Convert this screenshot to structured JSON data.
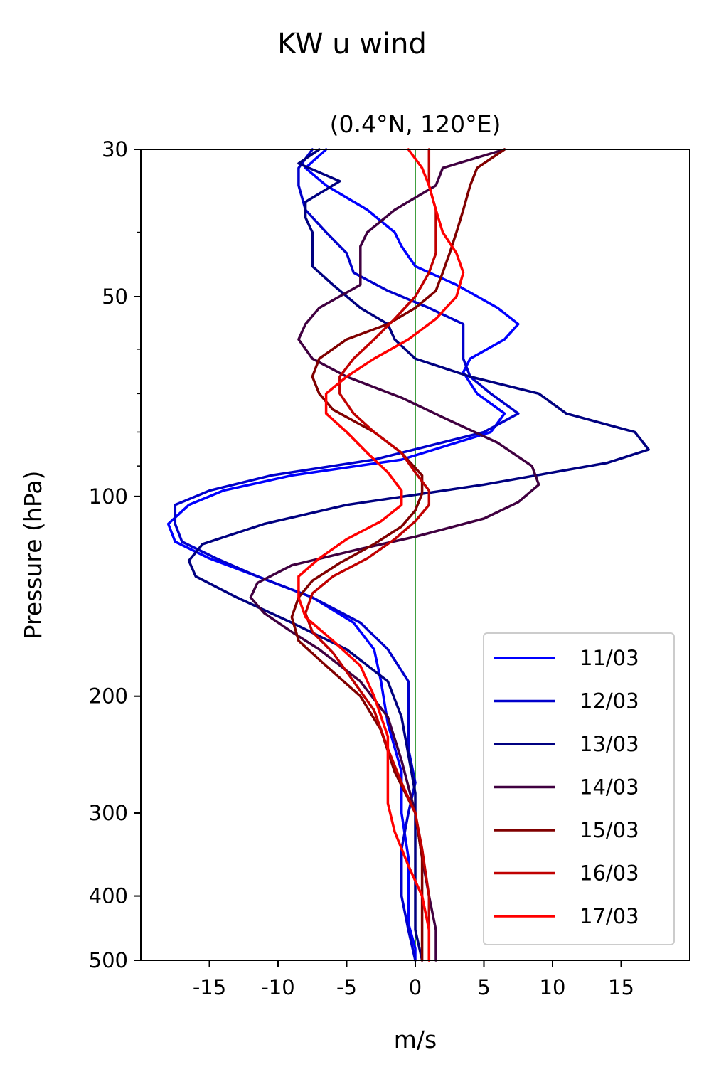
{
  "chart_data": {
    "type": "line",
    "suptitle": "KW u wind",
    "title": "(0.4°N, 120°E)",
    "xlabel": "m/s",
    "ylabel": "Pressure (hPa)",
    "xlim": [
      -20,
      20
    ],
    "ylim": [
      500,
      30
    ],
    "yscale": "log",
    "xticks": [
      -15,
      -10,
      -5,
      0,
      5,
      10,
      15
    ],
    "xtick_labels": [
      "-15",
      "-10",
      "-5",
      "0",
      "5",
      "10",
      "15"
    ],
    "yticks": [
      30,
      50,
      100,
      200,
      300,
      400,
      500
    ],
    "ytick_labels": [
      "30",
      "50",
      "100",
      "200",
      "300",
      "400",
      "500"
    ],
    "reference_line": {
      "x": 0,
      "color": "#008000"
    },
    "legend_position": "lower right",
    "series": [
      {
        "name": "11/03",
        "color": "#0000ff",
        "points": [
          [
            -6.5,
            30
          ],
          [
            -8,
            32
          ],
          [
            -6.5,
            34
          ],
          [
            -3.5,
            37
          ],
          [
            -1.5,
            40
          ],
          [
            -1,
            42
          ],
          [
            0,
            45
          ],
          [
            3,
            48
          ],
          [
            6,
            52
          ],
          [
            7.5,
            55
          ],
          [
            6.5,
            58
          ],
          [
            4,
            62
          ],
          [
            3.5,
            65
          ],
          [
            4.5,
            70
          ],
          [
            6.5,
            75
          ],
          [
            5.5,
            80
          ],
          [
            -1,
            88
          ],
          [
            -9,
            93
          ],
          [
            -14,
            98
          ],
          [
            -16.5,
            103
          ],
          [
            -18,
            110
          ],
          [
            -17.5,
            117
          ],
          [
            -15,
            124
          ],
          [
            -11.5,
            132
          ],
          [
            -7.5,
            142
          ],
          [
            -4.5,
            155
          ],
          [
            -3,
            170
          ],
          [
            -2.5,
            190
          ],
          [
            -2,
            220
          ],
          [
            -1,
            260
          ],
          [
            -1,
            300
          ],
          [
            -0.5,
            350
          ],
          [
            -0.5,
            400
          ],
          [
            -0.5,
            440
          ],
          [
            0,
            480
          ],
          [
            0,
            500
          ]
        ]
      },
      {
        "name": "12/03",
        "color": "#0000cc",
        "points": [
          [
            -7.5,
            30
          ],
          [
            -8.5,
            32
          ],
          [
            -8.5,
            34
          ],
          [
            -8,
            37
          ],
          [
            -6.5,
            40
          ],
          [
            -5,
            43
          ],
          [
            -4.5,
            46
          ],
          [
            -2,
            49
          ],
          [
            1,
            52
          ],
          [
            3.5,
            55
          ],
          [
            3.5,
            58
          ],
          [
            3.5,
            62
          ],
          [
            4,
            66
          ],
          [
            5.5,
            70
          ],
          [
            7.5,
            75
          ],
          [
            5,
            80
          ],
          [
            -3,
            88
          ],
          [
            -10.5,
            93
          ],
          [
            -15,
            98
          ],
          [
            -17.5,
            103
          ],
          [
            -17.5,
            110
          ],
          [
            -17,
            117
          ],
          [
            -14.5,
            124
          ],
          [
            -11.5,
            132
          ],
          [
            -7.5,
            142
          ],
          [
            -4,
            155
          ],
          [
            -2,
            170
          ],
          [
            -0.5,
            190
          ],
          [
            -0.5,
            215
          ],
          [
            -0.5,
            240
          ],
          [
            0,
            270
          ],
          [
            -0.5,
            300
          ],
          [
            -1,
            340
          ],
          [
            -1,
            400
          ],
          [
            -0.5,
            450
          ],
          [
            0,
            500
          ]
        ]
      },
      {
        "name": "13/03",
        "color": "#000080",
        "points": [
          [
            -7,
            30
          ],
          [
            -8.5,
            31.5
          ],
          [
            -5.5,
            33.5
          ],
          [
            -8,
            36
          ],
          [
            -8,
            38
          ],
          [
            -7.5,
            40
          ],
          [
            -7.5,
            43
          ],
          [
            -7.5,
            45
          ],
          [
            -6,
            48
          ],
          [
            -4,
            52
          ],
          [
            -2,
            55
          ],
          [
            -1.5,
            58
          ],
          [
            0,
            62
          ],
          [
            4,
            66
          ],
          [
            9,
            70
          ],
          [
            11,
            75
          ],
          [
            16,
            80
          ],
          [
            17,
            85
          ],
          [
            14,
            89
          ],
          [
            5,
            96
          ],
          [
            -5,
            103
          ],
          [
            -11,
            110
          ],
          [
            -15.5,
            118
          ],
          [
            -16.5,
            125
          ],
          [
            -16,
            132
          ],
          [
            -13,
            142
          ],
          [
            -9,
            155
          ],
          [
            -5,
            170
          ],
          [
            -2,
            190
          ],
          [
            -1,
            215
          ],
          [
            -0.5,
            245
          ],
          [
            0,
            280
          ],
          [
            0,
            320
          ],
          [
            0,
            380
          ],
          [
            0,
            450
          ],
          [
            0.5,
            500
          ]
        ]
      },
      {
        "name": "14/03",
        "color": "#400040",
        "points": [
          [
            6.5,
            30
          ],
          [
            2,
            32
          ],
          [
            1.5,
            34
          ],
          [
            -1.5,
            37
          ],
          [
            -3.5,
            40
          ],
          [
            -4,
            42
          ],
          [
            -4,
            45
          ],
          [
            -4,
            48
          ],
          [
            -7,
            52
          ],
          [
            -8,
            55
          ],
          [
            -8.5,
            58
          ],
          [
            -7.5,
            62
          ],
          [
            -5,
            66
          ],
          [
            -1,
            71
          ],
          [
            2,
            76
          ],
          [
            6,
            83
          ],
          [
            8.5,
            90
          ],
          [
            9,
            96
          ],
          [
            7.5,
            102
          ],
          [
            5,
            108
          ],
          [
            0,
            115
          ],
          [
            -4,
            120
          ],
          [
            -9,
            127
          ],
          [
            -11.5,
            135
          ],
          [
            -12,
            142
          ],
          [
            -11,
            150
          ],
          [
            -9,
            160
          ],
          [
            -7,
            170
          ],
          [
            -4,
            190
          ],
          [
            -2,
            215
          ],
          [
            -1,
            250
          ],
          [
            0,
            300
          ],
          [
            0.5,
            350
          ],
          [
            1,
            400
          ],
          [
            1.5,
            450
          ],
          [
            1.5,
            500
          ]
        ]
      },
      {
        "name": "15/03",
        "color": "#800000",
        "points": [
          [
            6.5,
            30
          ],
          [
            4.5,
            32
          ],
          [
            4,
            34
          ],
          [
            3.5,
            37
          ],
          [
            3,
            40
          ],
          [
            2.5,
            43
          ],
          [
            2,
            46
          ],
          [
            1.5,
            49
          ],
          [
            0,
            52
          ],
          [
            -2,
            55
          ],
          [
            -5,
            58
          ],
          [
            -7,
            62
          ],
          [
            -7.5,
            66
          ],
          [
            -7,
            70
          ],
          [
            -6,
            74
          ],
          [
            -3,
            80
          ],
          [
            -1,
            86
          ],
          [
            0.5,
            93
          ],
          [
            0.5,
            99
          ],
          [
            0,
            105
          ],
          [
            -1,
            111
          ],
          [
            -3,
            118
          ],
          [
            -5.5,
            126
          ],
          [
            -7.5,
            134
          ],
          [
            -8.5,
            142
          ],
          [
            -9,
            152
          ],
          [
            -8.5,
            165
          ],
          [
            -6.5,
            180
          ],
          [
            -4,
            200
          ],
          [
            -2.5,
            225
          ],
          [
            -1.5,
            260
          ],
          [
            0,
            300
          ],
          [
            0.5,
            350
          ],
          [
            0.5,
            400
          ],
          [
            0.5,
            450
          ],
          [
            0.5,
            500
          ]
        ]
      },
      {
        "name": "16/03",
        "color": "#c00000",
        "points": [
          [
            1,
            30
          ],
          [
            1,
            32
          ],
          [
            1,
            34
          ],
          [
            1.5,
            37
          ],
          [
            1.5,
            40
          ],
          [
            1.5,
            43
          ],
          [
            1,
            46
          ],
          [
            0,
            50
          ],
          [
            -1.5,
            54
          ],
          [
            -3,
            58
          ],
          [
            -4.5,
            62
          ],
          [
            -5.5,
            66
          ],
          [
            -5.5,
            70
          ],
          [
            -4.5,
            75
          ],
          [
            -3,
            80
          ],
          [
            -1,
            86
          ],
          [
            0,
            92
          ],
          [
            1,
            98
          ],
          [
            1,
            103
          ],
          [
            0,
            109
          ],
          [
            -1.5,
            116
          ],
          [
            -3.5,
            124
          ],
          [
            -6,
            132
          ],
          [
            -7.5,
            140
          ],
          [
            -8,
            150
          ],
          [
            -7.5,
            160
          ],
          [
            -6,
            172
          ],
          [
            -4.5,
            190
          ],
          [
            -3,
            210
          ],
          [
            -2,
            240
          ],
          [
            -1,
            270
          ],
          [
            0,
            300
          ],
          [
            0.5,
            340
          ],
          [
            1,
            400
          ],
          [
            1,
            450
          ],
          [
            1,
            500
          ]
        ]
      },
      {
        "name": "17/03",
        "color": "#ff0000",
        "points": [
          [
            -0.5,
            30
          ],
          [
            0.5,
            32
          ],
          [
            1,
            34
          ],
          [
            1.5,
            37
          ],
          [
            2,
            40
          ],
          [
            3,
            43
          ],
          [
            3.5,
            46
          ],
          [
            3,
            50
          ],
          [
            1.5,
            54
          ],
          [
            -0.5,
            58
          ],
          [
            -3,
            62
          ],
          [
            -5,
            66
          ],
          [
            -6.5,
            70
          ],
          [
            -6.5,
            75
          ],
          [
            -5,
            80
          ],
          [
            -3.5,
            86
          ],
          [
            -2,
            92
          ],
          [
            -1,
            98
          ],
          [
            -1,
            103
          ],
          [
            -2.5,
            109
          ],
          [
            -5,
            116
          ],
          [
            -7,
            124
          ],
          [
            -8.5,
            132
          ],
          [
            -8.5,
            142
          ],
          [
            -8,
            152
          ],
          [
            -6,
            165
          ],
          [
            -4,
            180
          ],
          [
            -3,
            200
          ],
          [
            -2,
            230
          ],
          [
            -2,
            260
          ],
          [
            -2,
            290
          ],
          [
            -1.5,
            320
          ],
          [
            -0.5,
            360
          ],
          [
            0.5,
            400
          ],
          [
            1,
            450
          ],
          [
            1,
            500
          ]
        ]
      }
    ]
  }
}
